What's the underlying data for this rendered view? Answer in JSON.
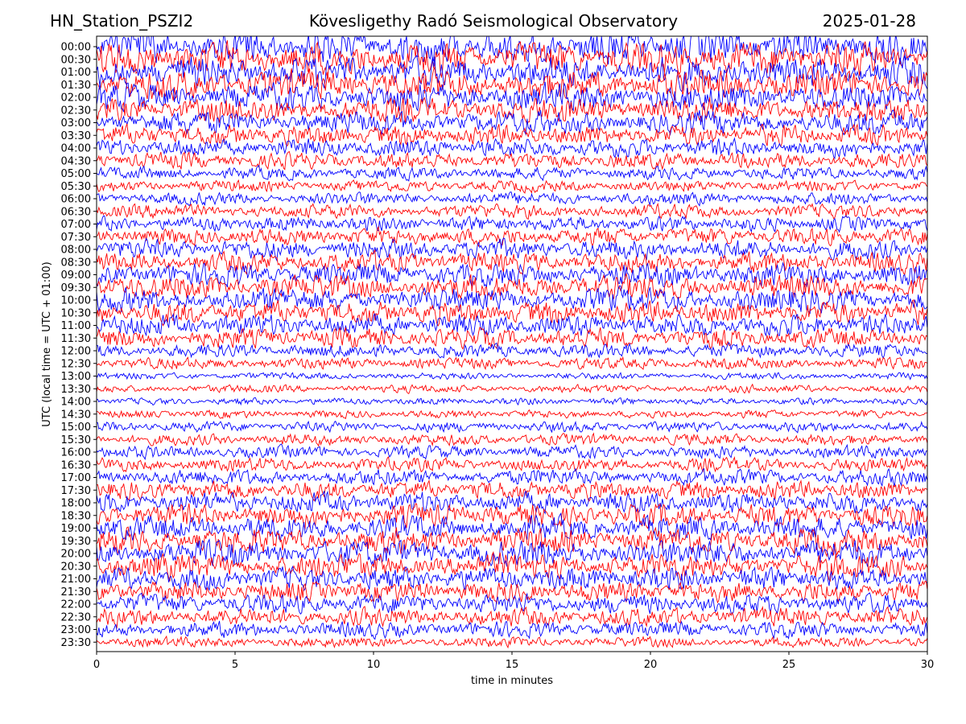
{
  "header": {
    "station": "HN_Station_PSZI2",
    "observatory": "Kövesligethy Radó Seismological Observatory",
    "date": "2025-01-28"
  },
  "chart_data": {
    "type": "line",
    "title": "Kövesligethy Radó Seismological Observatory",
    "xlabel": "time in minutes",
    "ylabel": "UTC (local time = UTC + 01:00)",
    "xlim": [
      0,
      30
    ],
    "x_ticks": [
      0,
      5,
      10,
      15,
      20,
      25,
      30
    ],
    "y_ticks": [
      "00:00",
      "00:30",
      "01:00",
      "01:30",
      "02:00",
      "02:30",
      "03:00",
      "03:30",
      "04:00",
      "04:30",
      "05:00",
      "05:30",
      "06:00",
      "06:30",
      "07:00",
      "07:30",
      "08:00",
      "08:30",
      "09:00",
      "09:30",
      "10:00",
      "10:30",
      "11:00",
      "11:30",
      "12:00",
      "12:30",
      "13:00",
      "13:30",
      "14:00",
      "14:30",
      "15:00",
      "15:30",
      "16:00",
      "16:30",
      "17:00",
      "17:30",
      "18:00",
      "18:30",
      "19:00",
      "19:30",
      "20:00",
      "20:30",
      "21:00",
      "21:30",
      "22:00",
      "22:30",
      "23:00",
      "23:30"
    ],
    "trace_colors": [
      "#0000ff",
      "#ff0000"
    ],
    "relative_amplitude": [
      1.4,
      1.45,
      1.35,
      1.3,
      1.2,
      1.1,
      1.0,
      0.9,
      0.8,
      0.7,
      0.55,
      0.5,
      0.55,
      0.6,
      0.65,
      0.75,
      0.85,
      0.9,
      1.0,
      1.05,
      1.05,
      1.0,
      0.95,
      0.85,
      0.6,
      0.5,
      0.3,
      0.35,
      0.3,
      0.35,
      0.45,
      0.5,
      0.55,
      0.6,
      0.7,
      0.8,
      0.9,
      1.0,
      1.05,
      1.1,
      1.15,
      1.1,
      1.0,
      0.9,
      0.85,
      0.8,
      0.7,
      0.45
    ],
    "grid": false
  }
}
